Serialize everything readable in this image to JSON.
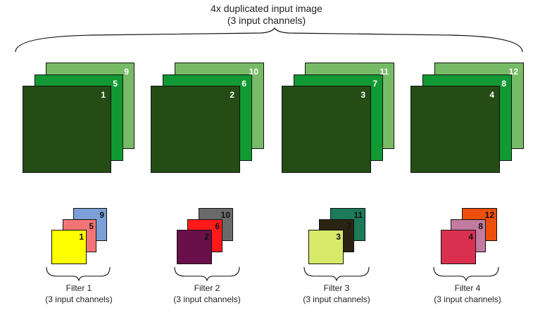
{
  "header": {
    "line1": "4x duplicated input image",
    "line2": "(3 input channels)"
  },
  "groups": [
    {
      "image_layers": [
        {
          "label": "9",
          "color": "#77bb66"
        },
        {
          "label": "5",
          "color": "#119933"
        },
        {
          "label": "1",
          "color": "#244c14"
        }
      ],
      "filter_layers": [
        {
          "label": "9",
          "color": "#7b9fd6"
        },
        {
          "label": "5",
          "color": "#f27575"
        },
        {
          "label": "1",
          "color": "#ffff00"
        }
      ],
      "filter_name": "Filter 1",
      "filter_sub": "(3 input channels)"
    },
    {
      "image_layers": [
        {
          "label": "10",
          "color": "#77bb66"
        },
        {
          "label": "6",
          "color": "#119933"
        },
        {
          "label": "2",
          "color": "#244c14"
        }
      ],
      "filter_layers": [
        {
          "label": "10",
          "color": "#6a6a6a"
        },
        {
          "label": "6",
          "color": "#ff1a1a"
        },
        {
          "label": "2",
          "color": "#6a0f4a"
        }
      ],
      "filter_name": "Filter 2",
      "filter_sub": "(3 input channels)"
    },
    {
      "image_layers": [
        {
          "label": "11",
          "color": "#77bb66"
        },
        {
          "label": "7",
          "color": "#119933"
        },
        {
          "label": "3",
          "color": "#244c14"
        }
      ],
      "filter_layers": [
        {
          "label": "11",
          "color": "#1a7a5a"
        },
        {
          "label": "7",
          "color": "#2b2412"
        },
        {
          "label": "3",
          "color": "#d8ea6a"
        }
      ],
      "filter_name": "Filter 3",
      "filter_sub": "(3 input channels)"
    },
    {
      "image_layers": [
        {
          "label": "12",
          "color": "#77bb66"
        },
        {
          "label": "8",
          "color": "#119933"
        },
        {
          "label": "4",
          "color": "#244c14"
        }
      ],
      "filter_layers": [
        {
          "label": "12",
          "color": "#ee4f0a"
        },
        {
          "label": "8",
          "color": "#c27a9e"
        },
        {
          "label": "4",
          "color": "#d93050"
        }
      ],
      "filter_name": "Filter 4",
      "filter_sub": "(3 input channels)"
    }
  ]
}
